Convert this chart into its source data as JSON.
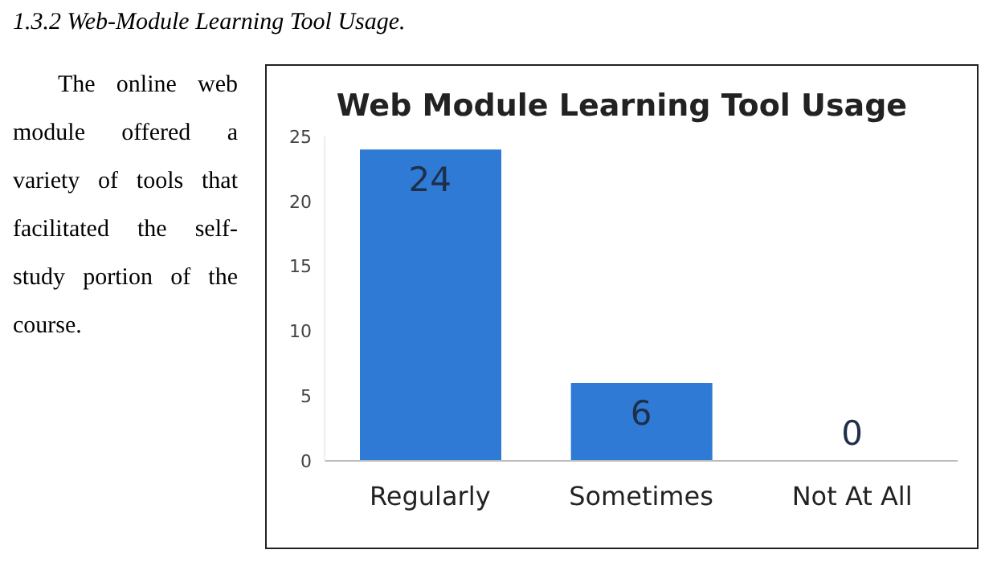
{
  "chart_data": {
    "type": "bar",
    "title": "Web Module Learning Tool Usage",
    "categories": [
      "Regularly",
      "Sometimes",
      "Not At All"
    ],
    "values": [
      24,
      6,
      0
    ],
    "color": "#2e7ad4",
    "ylim": [
      0,
      25
    ],
    "yticks": [
      0,
      5,
      10,
      15,
      20,
      25
    ],
    "grid": false,
    "legend": false,
    "data_labels": true,
    "annotations": [
      "1.3.2     Web-Module Learning Tool Usage.",
      "The online web module offered a variety of tools that facilitated the self-study portion of the course."
    ]
  }
}
